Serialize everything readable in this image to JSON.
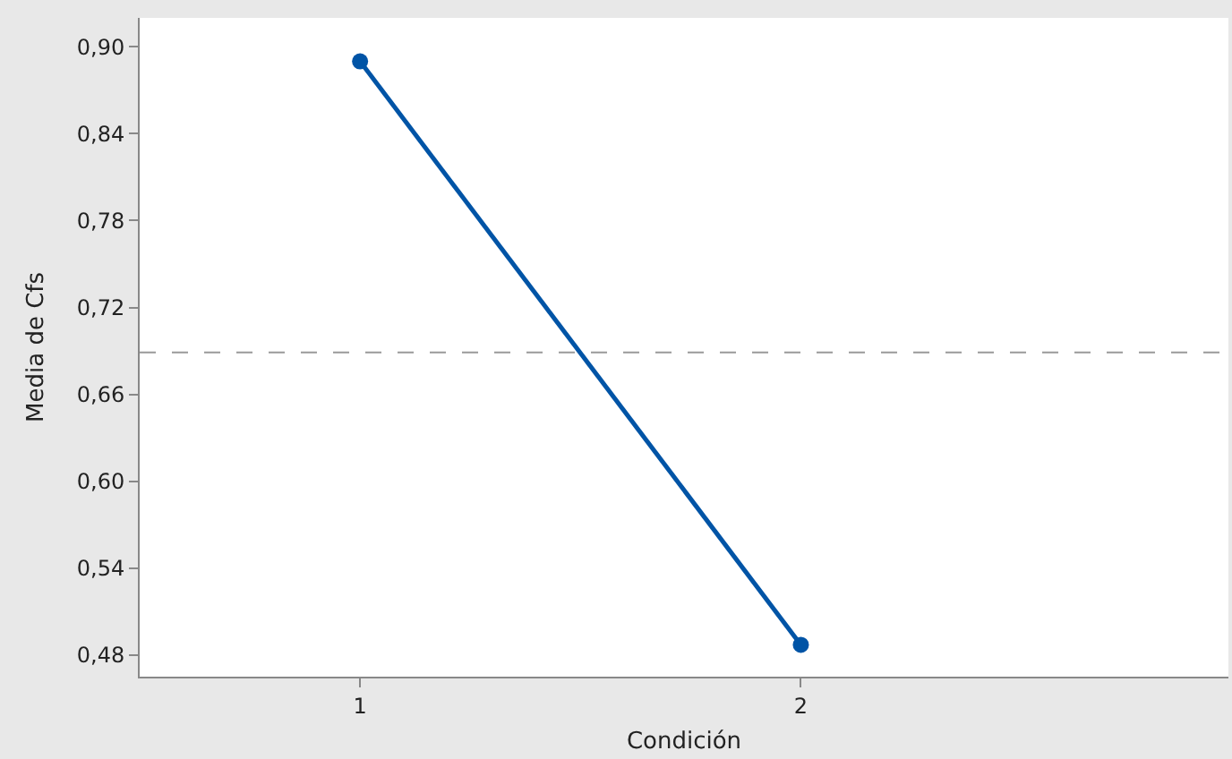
{
  "chart_data": {
    "type": "line",
    "xlabel": "Condición",
    "ylabel": "Media de Cfs",
    "categories": [
      "1",
      "2"
    ],
    "series": [
      {
        "color": "#0054a6",
        "values": [
          0.89,
          0.487
        ]
      }
    ],
    "ylim": [
      0.465,
      0.92
    ],
    "yticks": [
      {
        "value": 0.48,
        "label": "0,48"
      },
      {
        "value": 0.54,
        "label": "0,54"
      },
      {
        "value": 0.6,
        "label": "0,60"
      },
      {
        "value": 0.66,
        "label": "0,66"
      },
      {
        "value": 0.72,
        "label": "0,72"
      },
      {
        "value": 0.78,
        "label": "0,78"
      },
      {
        "value": 0.84,
        "label": "0,84"
      },
      {
        "value": 0.9,
        "label": "0,90"
      }
    ],
    "ref_lines": [
      {
        "axis": "y",
        "value": 0.689,
        "color": "#999999",
        "line_style": "dashed"
      }
    ],
    "marker": "circle",
    "line_style": "solid"
  }
}
